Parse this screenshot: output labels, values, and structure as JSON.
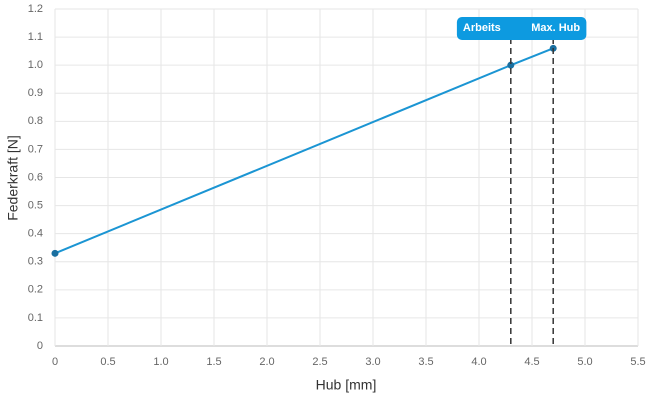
{
  "chart_data": {
    "type": "line",
    "x_label": "Hub [mm]",
    "y_label": "Federkraft [N]",
    "x": [
      0,
      4.3,
      4.7
    ],
    "series": [
      {
        "name": "Federkraft",
        "color": "#1b95d3",
        "values": [
          0.33,
          1.0,
          1.06
        ]
      }
    ],
    "xlim": [
      0,
      5.5
    ],
    "xticks": [
      0,
      0.5,
      {
        "value": 1,
        "label": "1.0"
      },
      1.5,
      {
        "value": 2,
        "label": "2.0"
      },
      2.5,
      {
        "value": 3,
        "label": "3.0"
      },
      3.5,
      {
        "value": 4,
        "label": "4.0"
      },
      4.5,
      {
        "value": 5,
        "label": "5.0"
      },
      5.5
    ],
    "ylim": [
      0,
      1.2
    ],
    "yticks": [
      0,
      0.1,
      0.2,
      0.3,
      0.4,
      0.5,
      0.6,
      0.7,
      0.8,
      0.9,
      {
        "value": 1,
        "label": "1.0"
      },
      1.1,
      1.2
    ],
    "grid": true,
    "annotations": [
      {
        "x": 4.3,
        "label": "Arbeits"
      },
      {
        "x": 4.7,
        "label": "Max. Hub"
      }
    ]
  }
}
